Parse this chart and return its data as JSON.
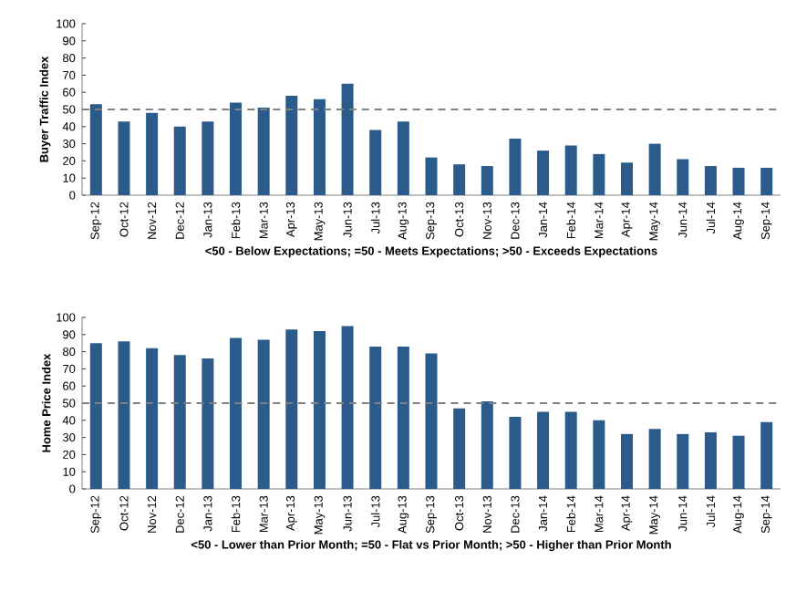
{
  "chart_data": [
    {
      "type": "bar",
      "ylabel": "Buyer Traffic Index",
      "xlabel": "<50 - Below Expectations; =50 - Meets Expectations; >50 - Exceeds Expectations",
      "categories": [
        "Sep-12",
        "Oct-12",
        "Nov-12",
        "Dec-12",
        "Jan-13",
        "Feb-13",
        "Mar-13",
        "Apr-13",
        "May-13",
        "Jun-13",
        "Jul-13",
        "Aug-13",
        "Sep-13",
        "Oct-13",
        "Nov-13",
        "Dec-13",
        "Jan-14",
        "Feb-14",
        "Mar-14",
        "Apr-14",
        "May-14",
        "Jun-14",
        "Jul-14",
        "Aug-14",
        "Sep-14"
      ],
      "values": [
        53,
        43,
        48,
        40,
        43,
        54,
        51,
        58,
        56,
        65,
        38,
        43,
        22,
        18,
        17,
        33,
        26,
        29,
        24,
        19,
        30,
        21,
        17,
        16,
        16
      ],
      "color": "#2b5b8a",
      "ylim": [
        0,
        100
      ],
      "yticks": [
        0,
        10,
        20,
        30,
        40,
        50,
        60,
        70,
        80,
        90,
        100
      ],
      "ref_lines": [
        {
          "axis": "y",
          "value": 50,
          "color": "#808080",
          "line_style": "dashed"
        }
      ]
    },
    {
      "type": "bar",
      "ylabel": "Home Price Index",
      "xlabel": "<50 - Lower than Prior Month; =50 - Flat vs Prior Month; >50 - Higher than Prior Month",
      "categories": [
        "Sep-12",
        "Oct-12",
        "Nov-12",
        "Dec-12",
        "Jan-13",
        "Feb-13",
        "Mar-13",
        "Apr-13",
        "May-13",
        "Jun-13",
        "Jul-13",
        "Aug-13",
        "Sep-13",
        "Oct-13",
        "Nov-13",
        "Dec-13",
        "Jan-14",
        "Feb-14",
        "Mar-14",
        "Apr-14",
        "May-14",
        "Jun-14",
        "Jul-14",
        "Aug-14",
        "Sep-14"
      ],
      "values": [
        85,
        86,
        82,
        78,
        76,
        88,
        87,
        93,
        92,
        95,
        83,
        83,
        79,
        47,
        51,
        42,
        45,
        45,
        40,
        32,
        35,
        32,
        33,
        31,
        39
      ],
      "color": "#2b5b8a",
      "ylim": [
        0,
        100
      ],
      "yticks": [
        0,
        10,
        20,
        30,
        40,
        50,
        60,
        70,
        80,
        90,
        100
      ],
      "ref_lines": [
        {
          "axis": "y",
          "value": 50,
          "color": "#808080",
          "line_style": "dashed"
        }
      ]
    }
  ]
}
